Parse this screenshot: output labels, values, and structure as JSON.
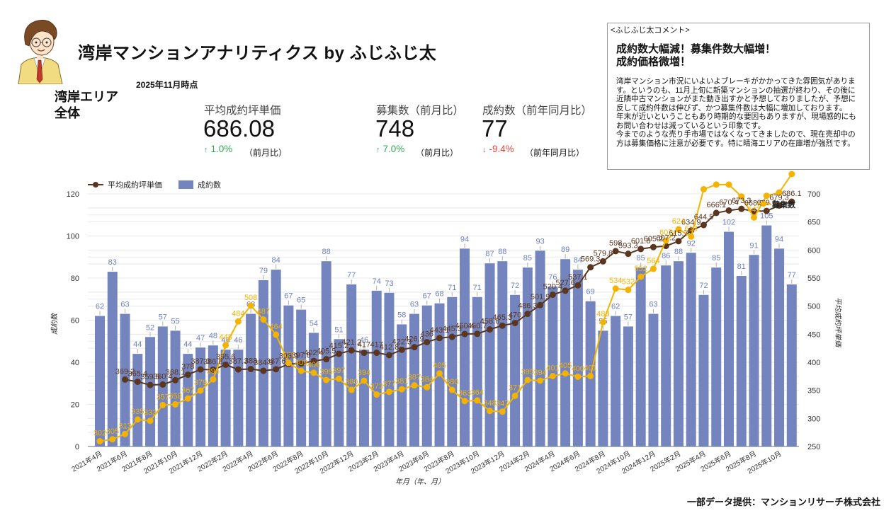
{
  "header": {
    "title": "湾岸マンションアナリティクス by ふじふじ太",
    "as_of": "2025年11月時点",
    "area_line1": "湾岸エリア",
    "area_line2": "全体"
  },
  "kpis": [
    {
      "label": "平均成約坪単価",
      "value": "686.08",
      "direction": "up",
      "icon": "arrow-up-icon",
      "change": "1.0%",
      "comparison": "（前月比）"
    },
    {
      "label": "募集数（前月比）",
      "value": "748",
      "direction": "up",
      "icon": "arrow-up-icon",
      "change": "7.0%",
      "comparison": "（前月比）"
    },
    {
      "label": "成約数（前年同月比）",
      "value": "77",
      "direction": "down",
      "icon": "arrow-down-icon",
      "change": "-9.4%",
      "comparison": "（前年同月比）"
    }
  ],
  "comment": {
    "header": "<ふじふじ太コメント>",
    "headline_lines": [
      "成約数大幅減！募集件数大幅増！",
      "成約価格微増！"
    ],
    "body_lines": [
      "湾岸マンション市況にいよいよブレーキがかかってきた雰囲気がありま",
      "す。というのも、11月上旬に新築マンションの抽選が終わり、その後に",
      "近隣中古マンションがまた動き出すかと予想しておりましたが、予想に",
      "反して成約件数は伸びず、かつ募集件数は大幅に増加しております。",
      "年末が近いということもあり時期的な要因もありますが、現場感的にも",
      "お問い合わせは減っているという印象です。",
      "今までのような売り手市場ではなくなってきましたので、現在売却中の",
      "方は募集価格に注意が必要です。特に晴海エリアの在庫増が強烈です。"
    ]
  },
  "footer": {
    "credit": "一部データ提供：マンションリサーチ株式会社"
  },
  "colors": {
    "up": "#34A853",
    "down": "#EA4335",
    "bar_label": "#6D7FC0"
  },
  "chart_data": {
    "type": "bar",
    "title": "",
    "xlabel": "年月（年、月）",
    "ylabel": "成約数",
    "y2label": "平均成約坪単価",
    "ylim": [
      0,
      120
    ],
    "y_ticks": [
      0,
      20,
      40,
      60,
      80,
      100,
      120
    ],
    "y2lim": [
      250,
      700
    ],
    "y2_ticks": [
      250,
      300,
      350,
      400,
      450,
      500,
      550,
      600,
      650,
      700
    ],
    "y3lim": [
      294,
      708
    ],
    "grid": true,
    "legend_position": "top-left",
    "x_tick_labels": [
      "2021年4月",
      "2021年6月",
      "2021年8月",
      "2021年10月",
      "2021年12月",
      "2022年2月",
      "2022年4月",
      "2022年6月",
      "2022年8月",
      "2022年10月",
      "2022年12月",
      "2023年2月",
      "2023年4月",
      "2023年6月",
      "2023年8月",
      "2023年10月",
      "2023年12月",
      "2024年2月",
      "2024年4月",
      "2024年6月",
      "2024年8月",
      "2024年10月",
      "2024年12月",
      "2025年2月",
      "2025年4月",
      "2025年6月",
      "2025年8月",
      "2025年10月"
    ],
    "x_tick_every": 2,
    "series": [
      {
        "name": "成約数",
        "type": "bar",
        "axis": "left",
        "color": "#7384BE",
        "values": [
          62,
          83,
          63,
          44,
          52,
          57,
          55,
          44,
          47,
          48,
          46,
          46,
          63,
          79,
          84,
          67,
          65,
          54,
          88,
          51,
          77,
          46,
          74,
          73,
          58,
          63,
          67,
          68,
          71,
          94,
          71,
          87,
          88,
          72,
          85,
          93,
          76,
          89,
          84,
          69,
          55,
          62,
          57,
          85,
          63,
          86,
          88,
          92,
          72,
          85,
          102,
          81,
          91,
          105,
          94,
          77
        ]
      },
      {
        "name": "平均成約坪単価",
        "type": "line",
        "axis": "right",
        "color": "#5A3620",
        "values": [
          null,
          null,
          369.2,
          365.4,
          359.5,
          360.4,
          368.1,
          378,
          387.3,
          386.8,
          395.6,
          387.3,
          388,
          384.9,
          387.6,
          396.9,
          397.8,
          402.4,
          405.5,
          415.2,
          421.2,
          417,
          417,
          412.8,
          422.3,
          426.9,
          436,
          443.1,
          445.3,
          450.4,
          450.7,
          458.6,
          465.3,
          470,
          486.3,
          501.9,
          520.4,
          527.6,
          537.1,
          569.3,
          579.8,
          598,
          593.3,
          601.8,
          605.2,
          607.2,
          615.7,
          634.9,
          644.5,
          666.1,
          670.4,
          673.3,
          668.9,
          669.6,
          679.3,
          686.1
        ]
      },
      {
        "name": "募集数",
        "type": "line",
        "axis": "hidden",
        "color": "#F5B301",
        "values": [
          302,
          305,
          313,
          335,
          333,
          357,
          358,
          367,
          379,
          396,
          448,
          484,
          508,
          487,
          464,
          421,
          409,
          406,
          395,
          397,
          380,
          394,
          373,
          377,
          381,
          387,
          384,
          405,
          380,
          363,
          364,
          348,
          347,
          371,
          395,
          394,
          401,
          405,
          400,
          401,
          483,
          534,
          532,
          552,
          564,
          607,
          624,
          613,
          685,
          692,
          692,
          674,
          642,
          675,
          680,
          748
        ],
        "hidden_label_indices": [
          48,
          49,
          50,
          51,
          53,
          54,
          55
        ]
      }
    ]
  }
}
